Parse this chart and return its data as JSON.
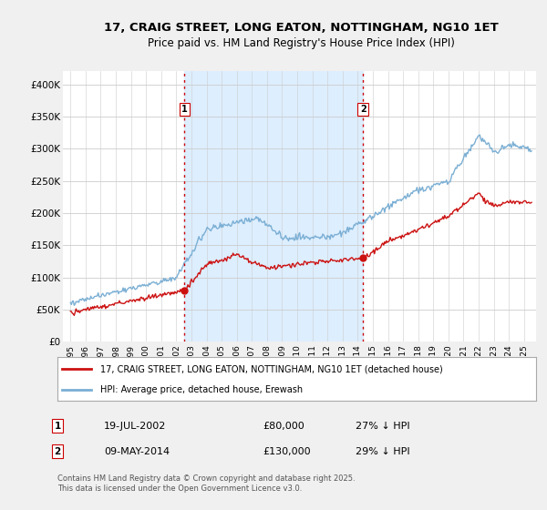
{
  "title_line1": "17, CRAIG STREET, LONG EATON, NOTTINGHAM, NG10 1ET",
  "title_line2": "Price paid vs. HM Land Registry's House Price Index (HPI)",
  "background_color": "#f0f0f0",
  "plot_bg_color": "#ffffff",
  "shade_color": "#ddeeff",
  "hpi_color": "#7bafd4",
  "price_color": "#cc1111",
  "vline_color": "#cc0000",
  "transaction1_x": 2002.547,
  "transaction1_price": 80000,
  "transaction2_x": 2014.353,
  "transaction2_price": 130000,
  "ylim_min": 0,
  "ylim_max": 420000,
  "xlim_min": 1994.5,
  "xlim_max": 2025.8,
  "yticks": [
    0,
    50000,
    100000,
    150000,
    200000,
    250000,
    300000,
    350000,
    400000
  ],
  "ytick_labels": [
    "£0",
    "£50K",
    "£100K",
    "£150K",
    "£200K",
    "£250K",
    "£300K",
    "£350K",
    "£400K"
  ],
  "legend_label1": "17, CRAIG STREET, LONG EATON, NOTTINGHAM, NG10 1ET (detached house)",
  "legend_label2": "HPI: Average price, detached house, Erewash",
  "footnote": "Contains HM Land Registry data © Crown copyright and database right 2025.\nThis data is licensed under the Open Government Licence v3.0.",
  "sale1_label": "19-JUL-2002",
  "sale1_price_label": "£80,000",
  "sale1_hpi_label": "27% ↓ HPI",
  "sale2_label": "09-MAY-2014",
  "sale2_price_label": "£130,000",
  "sale2_hpi_label": "29% ↓ HPI",
  "figwidth": 6.0,
  "figheight": 5.6,
  "dpi": 100
}
